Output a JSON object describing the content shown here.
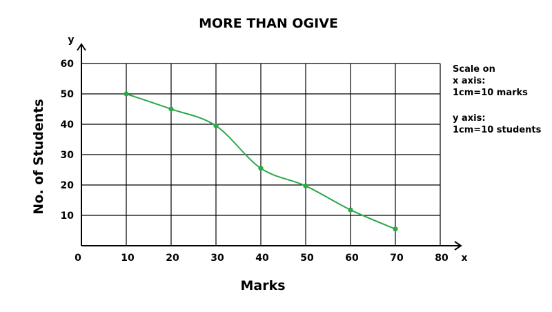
{
  "chart_data": {
    "type": "line",
    "title": "MORE THAN OGIVE",
    "xlabel": "Marks",
    "ylabel": "No. of Students",
    "x_axis_letter": "x",
    "y_axis_letter": "y",
    "origin_label": "0",
    "xlim": [
      0,
      80
    ],
    "ylim": [
      0,
      60
    ],
    "x_ticks": [
      10,
      20,
      30,
      40,
      50,
      60,
      70,
      80
    ],
    "y_ticks": [
      10,
      20,
      30,
      40,
      50,
      60
    ],
    "grid": true,
    "series": [
      {
        "x": [
          10,
          20,
          30,
          40,
          50,
          60,
          70
        ],
        "values": [
          50,
          45,
          39.5,
          25.5,
          19.7,
          11.8,
          5.5
        ],
        "color": "#2aa84a"
      }
    ],
    "scale_note": {
      "x_lines": [
        "Scale on",
        "x axis:",
        "1cm=10 marks"
      ],
      "y_lines": [
        "y axis:",
        "1cm=10 students"
      ]
    }
  }
}
